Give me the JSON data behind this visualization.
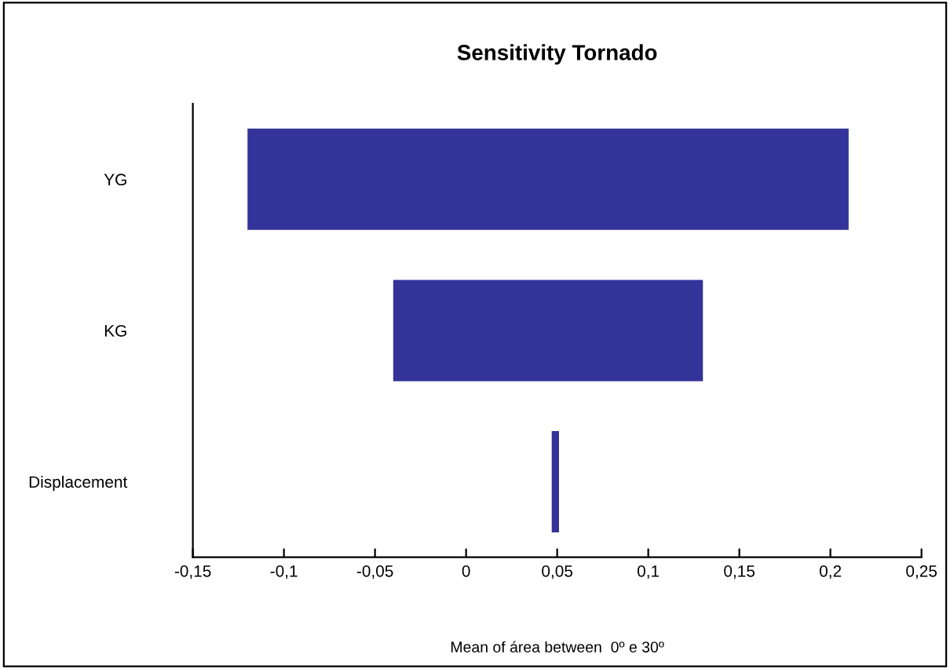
{
  "chart_data": {
    "type": "bar",
    "orientation": "horizontal",
    "title": "Sensitivity Tornado",
    "xlabel": "Mean of área between  0º e 30º",
    "categories": [
      "YG",
      "KG",
      "Displacement"
    ],
    "values": [
      0.33,
      0.17,
      0.004
    ],
    "base": [
      -0.12,
      -0.04,
      0.047
    ],
    "color": "#333399",
    "xlim": [
      -0.15,
      0.25
    ],
    "xticks": [
      {
        "value": -0.15,
        "label": "-0,15"
      },
      {
        "value": -0.1,
        "label": "-0,1"
      },
      {
        "value": -0.05,
        "label": "-0,05"
      },
      {
        "value": 0,
        "label": "0"
      },
      {
        "value": 0.05,
        "label": "0,05"
      },
      {
        "value": 0.1,
        "label": "0,1"
      },
      {
        "value": 0.15,
        "label": "0,15"
      },
      {
        "value": 0.2,
        "label": "0,2"
      },
      {
        "value": 0.25,
        "label": "0,25"
      }
    ],
    "grid": false,
    "legend": false
  }
}
